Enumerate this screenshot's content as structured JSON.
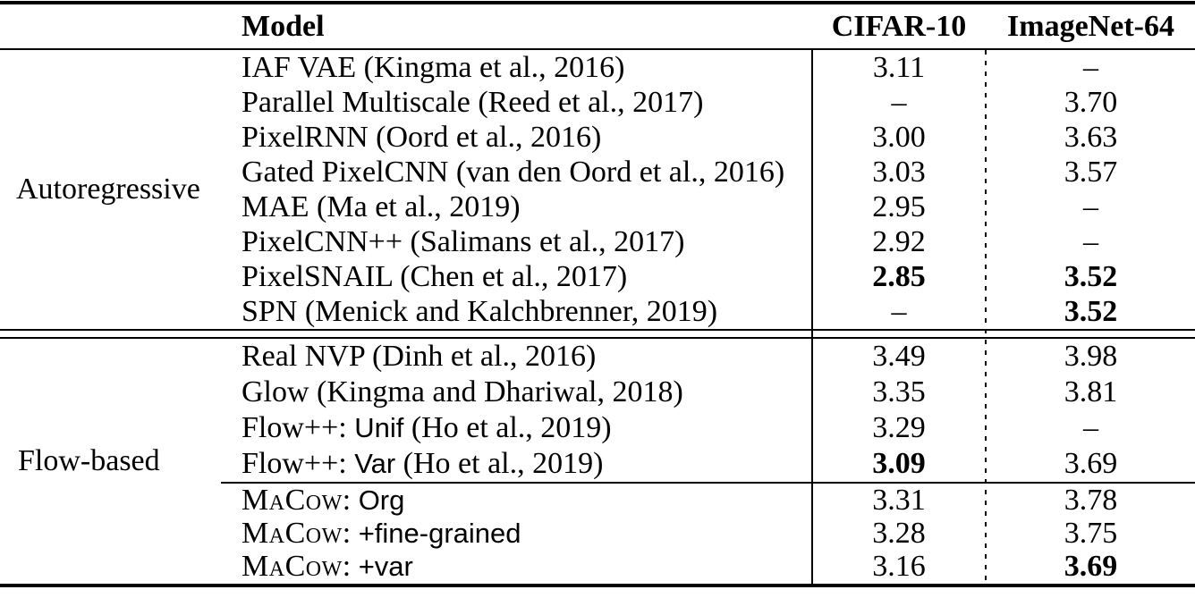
{
  "table": {
    "columns": {
      "model": "Model",
      "cifar": "CIFAR-10",
      "imagenet": "ImageNet-64"
    },
    "groups": [
      {
        "label": "Autoregressive"
      },
      {
        "label": "Flow-based"
      }
    ],
    "missing_marker": "–",
    "rows": [
      {
        "m1": "IAF VAE (Kingma et al., 2016)",
        "cifar": "3.11",
        "imagenet": "–"
      },
      {
        "m1": "Parallel Multiscale (Reed et al., 2017)",
        "cifar": "–",
        "imagenet": "3.70"
      },
      {
        "m1": "PixelRNN (Oord et al., 2016)",
        "cifar": "3.00",
        "imagenet": "3.63"
      },
      {
        "m1": "Gated PixelCNN (van den Oord et al., 2016)",
        "cifar": "3.03",
        "imagenet": "3.57"
      },
      {
        "m1": "MAE (Ma et al., 2019)",
        "cifar": "2.95",
        "imagenet": "–"
      },
      {
        "m1": "PixelCNN++ (Salimans et al., 2017)",
        "cifar": "2.92",
        "imagenet": "–"
      },
      {
        "m1": "PixelSNAIL (Chen et al., 2017)",
        "cifar": "2.85",
        "imagenet": "3.52",
        "cifar_bold": true,
        "imagenet_bold": true
      },
      {
        "m1": "SPN (Menick and Kalchbrenner, 2019)",
        "cifar": "–",
        "imagenet": "3.52",
        "imagenet_bold": true
      },
      {
        "m1": "Real NVP (Dinh et al., 2016)",
        "cifar": "3.49",
        "imagenet": "3.98"
      },
      {
        "m1": "Glow (Kingma and Dhariwal, 2018)",
        "cifar": "3.35",
        "imagenet": "3.81"
      },
      {
        "m1": "Flow++: ",
        "m2": "Unif",
        "m3": " (Ho et al., 2019)",
        "cifar": "3.29",
        "imagenet": "–"
      },
      {
        "m1": "Flow++: ",
        "m2": "Var",
        "m3": " (Ho et al., 2019)",
        "cifar": "3.09",
        "imagenet": "3.69",
        "cifar_bold": true
      },
      {
        "msc": "MaCow",
        "m1": ": ",
        "m2": "Org",
        "cifar": "3.31",
        "imagenet": "3.78"
      },
      {
        "msc": "MaCow",
        "m1": ": ",
        "m2": "+fine-grained",
        "cifar": "3.28",
        "imagenet": "3.75"
      },
      {
        "msc": "MaCow",
        "m1": ": ",
        "m2": "+var",
        "cifar": "3.16",
        "imagenet": "3.69",
        "imagenet_bold": true
      }
    ]
  }
}
